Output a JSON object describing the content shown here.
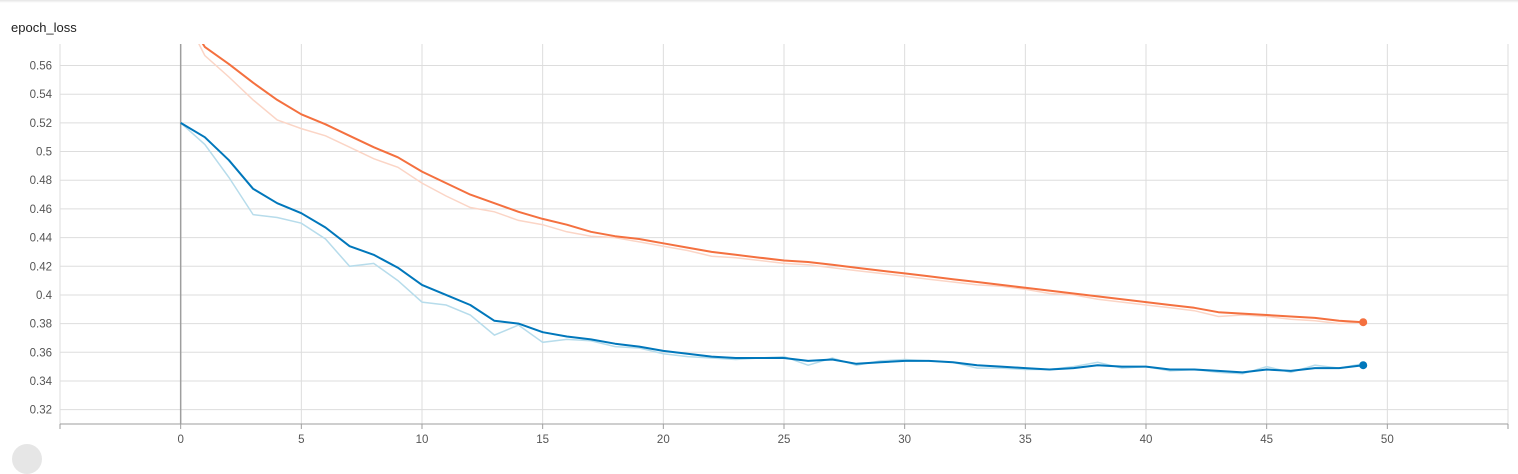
{
  "card": {
    "title": "epoch_loss"
  },
  "chart_data": {
    "type": "line",
    "title": "epoch_loss",
    "xlabel": "",
    "ylabel": "",
    "xlim": [
      -5,
      55
    ],
    "ylim": [
      0.31,
      0.575
    ],
    "x_ticks": [
      "0",
      "5",
      "10",
      "15",
      "20",
      "25",
      "30",
      "35",
      "40",
      "45",
      "50"
    ],
    "y_ticks": [
      "0.32",
      "0.34",
      "0.36",
      "0.38",
      "0.4",
      "0.42",
      "0.44",
      "0.46",
      "0.48",
      "0.5",
      "0.52",
      "0.54",
      "0.56"
    ],
    "grid": true,
    "colors": {
      "orange": "#f4703f",
      "orange_raw": "#fbd5c6",
      "blue": "#0077bb",
      "blue_raw": "#b7dceb",
      "grid": "#dddddd",
      "origin_axis": "#9e9e9e"
    },
    "series": [
      {
        "color_key": "orange",
        "x": [
          0,
          1,
          2,
          3,
          4,
          5,
          6,
          7,
          8,
          9,
          10,
          11,
          12,
          13,
          14,
          15,
          16,
          17,
          18,
          19,
          20,
          21,
          22,
          23,
          24,
          25,
          26,
          27,
          28,
          29,
          30,
          31,
          32,
          33,
          34,
          35,
          36,
          37,
          38,
          39,
          40,
          41,
          42,
          43,
          44,
          45,
          46,
          47,
          48,
          49
        ],
        "values": [
          0.6,
          0.573,
          0.561,
          0.548,
          0.536,
          0.526,
          0.519,
          0.511,
          0.503,
          0.496,
          0.486,
          0.478,
          0.47,
          0.464,
          0.458,
          0.453,
          0.449,
          0.444,
          0.441,
          0.439,
          0.436,
          0.433,
          0.43,
          0.428,
          0.426,
          0.424,
          0.423,
          0.421,
          0.419,
          0.417,
          0.415,
          0.413,
          0.411,
          0.409,
          0.407,
          0.405,
          0.403,
          0.401,
          0.399,
          0.397,
          0.395,
          0.393,
          0.391,
          0.388,
          0.387,
          0.386,
          0.385,
          0.384,
          0.382,
          0.381
        ],
        "raw_values": [
          0.6,
          0.567,
          0.552,
          0.536,
          0.522,
          0.516,
          0.511,
          0.503,
          0.495,
          0.489,
          0.478,
          0.469,
          0.461,
          0.458,
          0.452,
          0.449,
          0.444,
          0.441,
          0.44,
          0.437,
          0.434,
          0.431,
          0.427,
          0.426,
          0.424,
          0.422,
          0.421,
          0.419,
          0.417,
          0.415,
          0.413,
          0.411,
          0.409,
          0.407,
          0.406,
          0.404,
          0.401,
          0.4,
          0.397,
          0.395,
          0.393,
          0.391,
          0.389,
          0.385,
          0.386,
          0.385,
          0.383,
          0.382,
          0.38,
          0.381
        ]
      },
      {
        "color_key": "blue",
        "x": [
          0,
          1,
          2,
          3,
          4,
          5,
          6,
          7,
          8,
          9,
          10,
          11,
          12,
          13,
          14,
          15,
          16,
          17,
          18,
          19,
          20,
          21,
          22,
          23,
          24,
          25,
          26,
          27,
          28,
          29,
          30,
          31,
          32,
          33,
          34,
          35,
          36,
          37,
          38,
          39,
          40,
          41,
          42,
          43,
          44,
          45,
          46,
          47,
          48,
          49
        ],
        "values": [
          0.52,
          0.51,
          0.494,
          0.474,
          0.464,
          0.457,
          0.447,
          0.434,
          0.428,
          0.419,
          0.407,
          0.4,
          0.393,
          0.382,
          0.38,
          0.374,
          0.371,
          0.369,
          0.366,
          0.364,
          0.361,
          0.359,
          0.357,
          0.356,
          0.356,
          0.356,
          0.354,
          0.355,
          0.352,
          0.353,
          0.354,
          0.354,
          0.353,
          0.351,
          0.35,
          0.349,
          0.348,
          0.349,
          0.351,
          0.35,
          0.35,
          0.348,
          0.348,
          0.347,
          0.346,
          0.348,
          0.347,
          0.349,
          0.349,
          0.351
        ],
        "raw_values": [
          0.52,
          0.505,
          0.482,
          0.456,
          0.454,
          0.45,
          0.439,
          0.42,
          0.422,
          0.41,
          0.395,
          0.393,
          0.386,
          0.372,
          0.379,
          0.367,
          0.369,
          0.368,
          0.364,
          0.363,
          0.359,
          0.357,
          0.356,
          0.355,
          0.356,
          0.357,
          0.351,
          0.356,
          0.351,
          0.354,
          0.355,
          0.354,
          0.353,
          0.349,
          0.349,
          0.348,
          0.348,
          0.35,
          0.353,
          0.349,
          0.35,
          0.347,
          0.348,
          0.346,
          0.345,
          0.35,
          0.346,
          0.351,
          0.349,
          0.352
        ]
      }
    ]
  }
}
